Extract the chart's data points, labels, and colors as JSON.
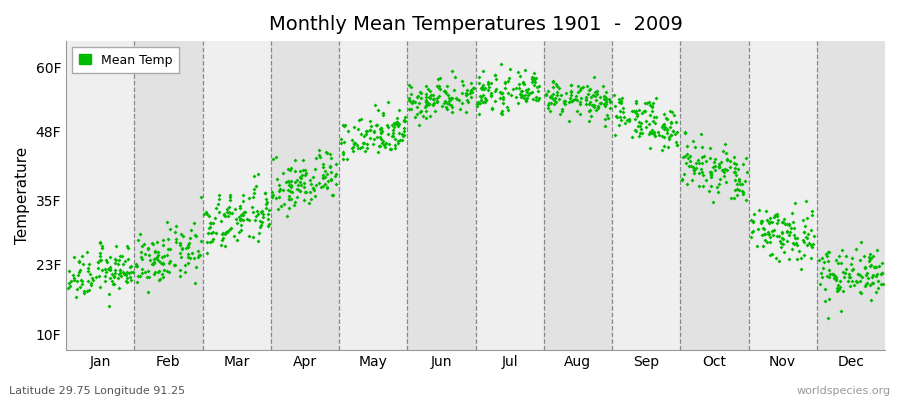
{
  "title": "Monthly Mean Temperatures 1901  -  2009",
  "ylabel": "Temperature",
  "xlabel_labels": [
    "Jan",
    "Feb",
    "Mar",
    "Apr",
    "May",
    "Jun",
    "Jul",
    "Aug",
    "Sep",
    "Oct",
    "Nov",
    "Dec"
  ],
  "ytick_labels": [
    "10F",
    "23F",
    "35F",
    "48F",
    "60F"
  ],
  "ytick_values": [
    10,
    23,
    35,
    48,
    60
  ],
  "ylim": [
    7,
    65
  ],
  "legend_label": "Mean Temp",
  "dot_color": "#00BB00",
  "bg_color_light": "#EFEFEF",
  "bg_color_dark": "#E2E2E2",
  "fig_color": "#FFFFFF",
  "footnote_left": "Latitude 29.75 Longitude 91.25",
  "footnote_right": "worldspecies.org",
  "n_years": 109,
  "monthly_means": [
    21.5,
    24.5,
    31.5,
    38.5,
    47.5,
    54.5,
    55.5,
    54.0,
    50.0,
    40.5,
    29.0,
    21.5
  ],
  "monthly_stds": [
    2.2,
    2.5,
    2.8,
    2.5,
    2.2,
    1.8,
    1.6,
    1.6,
    2.0,
    2.8,
    2.8,
    2.5
  ],
  "monthly_trend": [
    2.5,
    3.0,
    4.0,
    4.5,
    4.0,
    2.5,
    1.0,
    -2.0,
    -4.0,
    -4.0,
    -3.0,
    1.5
  ]
}
